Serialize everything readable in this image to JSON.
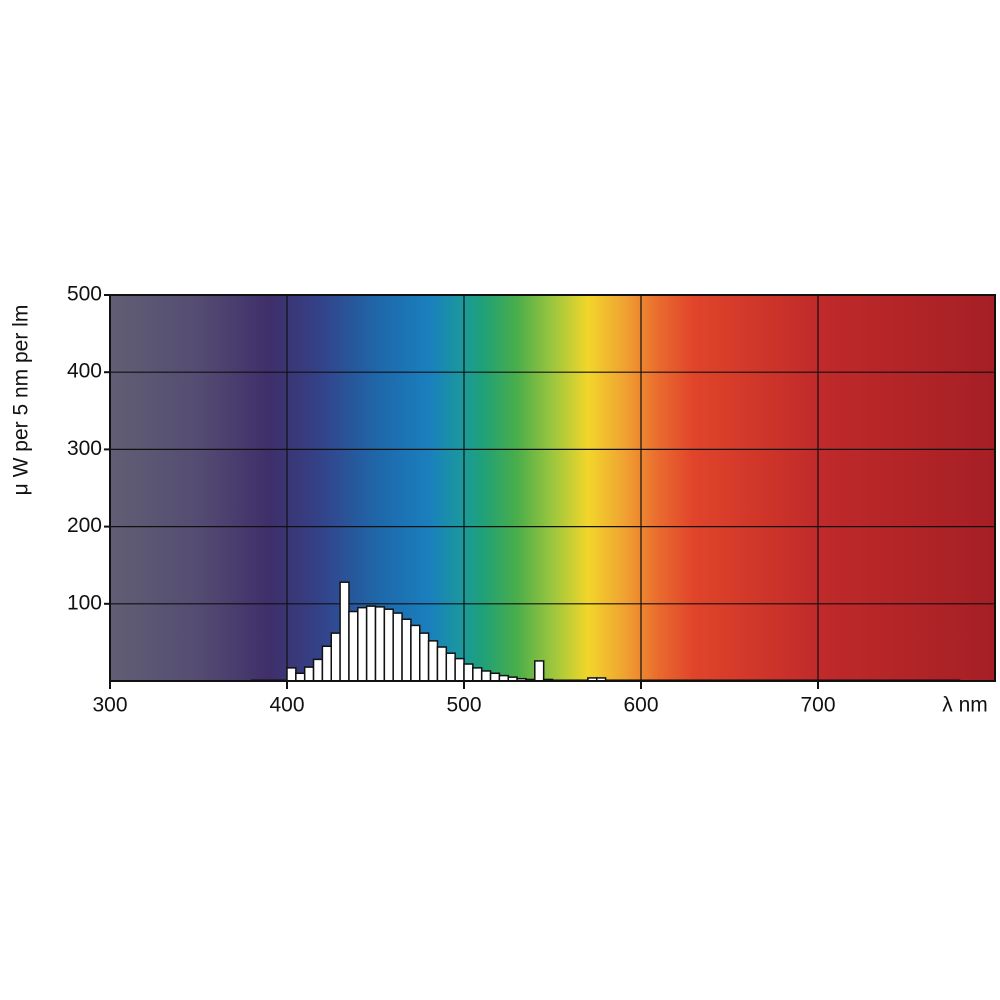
{
  "chart_data": {
    "type": "histogram",
    "ylabel": "μ W per 5 nm per lm",
    "xlabel": "λ nm",
    "bins": [
      380,
      385,
      390,
      395,
      400,
      405,
      410,
      415,
      420,
      425,
      430,
      435,
      440,
      445,
      450,
      455,
      460,
      465,
      470,
      475,
      480,
      485,
      490,
      495,
      500,
      505,
      510,
      515,
      520,
      525,
      530,
      535,
      540,
      545,
      550,
      555,
      560,
      565,
      570,
      575,
      580,
      585,
      590,
      595,
      600,
      605,
      610,
      615,
      620,
      625,
      630,
      635,
      640,
      645,
      650,
      655,
      660,
      665,
      670,
      675,
      680,
      685,
      690,
      695,
      700,
      705,
      710,
      715,
      720,
      725,
      730,
      735,
      740,
      745,
      750,
      755,
      760,
      765,
      770,
      775,
      780
    ],
    "values": [
      1,
      1,
      1,
      1,
      17,
      10,
      18,
      28,
      45,
      62,
      128,
      90,
      95,
      97,
      96,
      93,
      88,
      80,
      72,
      62,
      52,
      44,
      36,
      29,
      22,
      17,
      13,
      10,
      7,
      5,
      3,
      2,
      26,
      2,
      1,
      1,
      1,
      1,
      4,
      4,
      1,
      1,
      1,
      1,
      1,
      1,
      1,
      1,
      1,
      1,
      1,
      1,
      1,
      1,
      1,
      1,
      1,
      1,
      1,
      1,
      1,
      1,
      1,
      1,
      1,
      1,
      1,
      1,
      1,
      1,
      1,
      1,
      1,
      1,
      1,
      1,
      1,
      1,
      1,
      1
    ],
    "color": "#ffffff",
    "xlim": [
      300,
      800
    ],
    "xticks": [
      300,
      400,
      500,
      600,
      700
    ],
    "ylim": [
      0,
      500
    ],
    "yticks": [
      100,
      200,
      300,
      400,
      500
    ],
    "grid": true
  }
}
